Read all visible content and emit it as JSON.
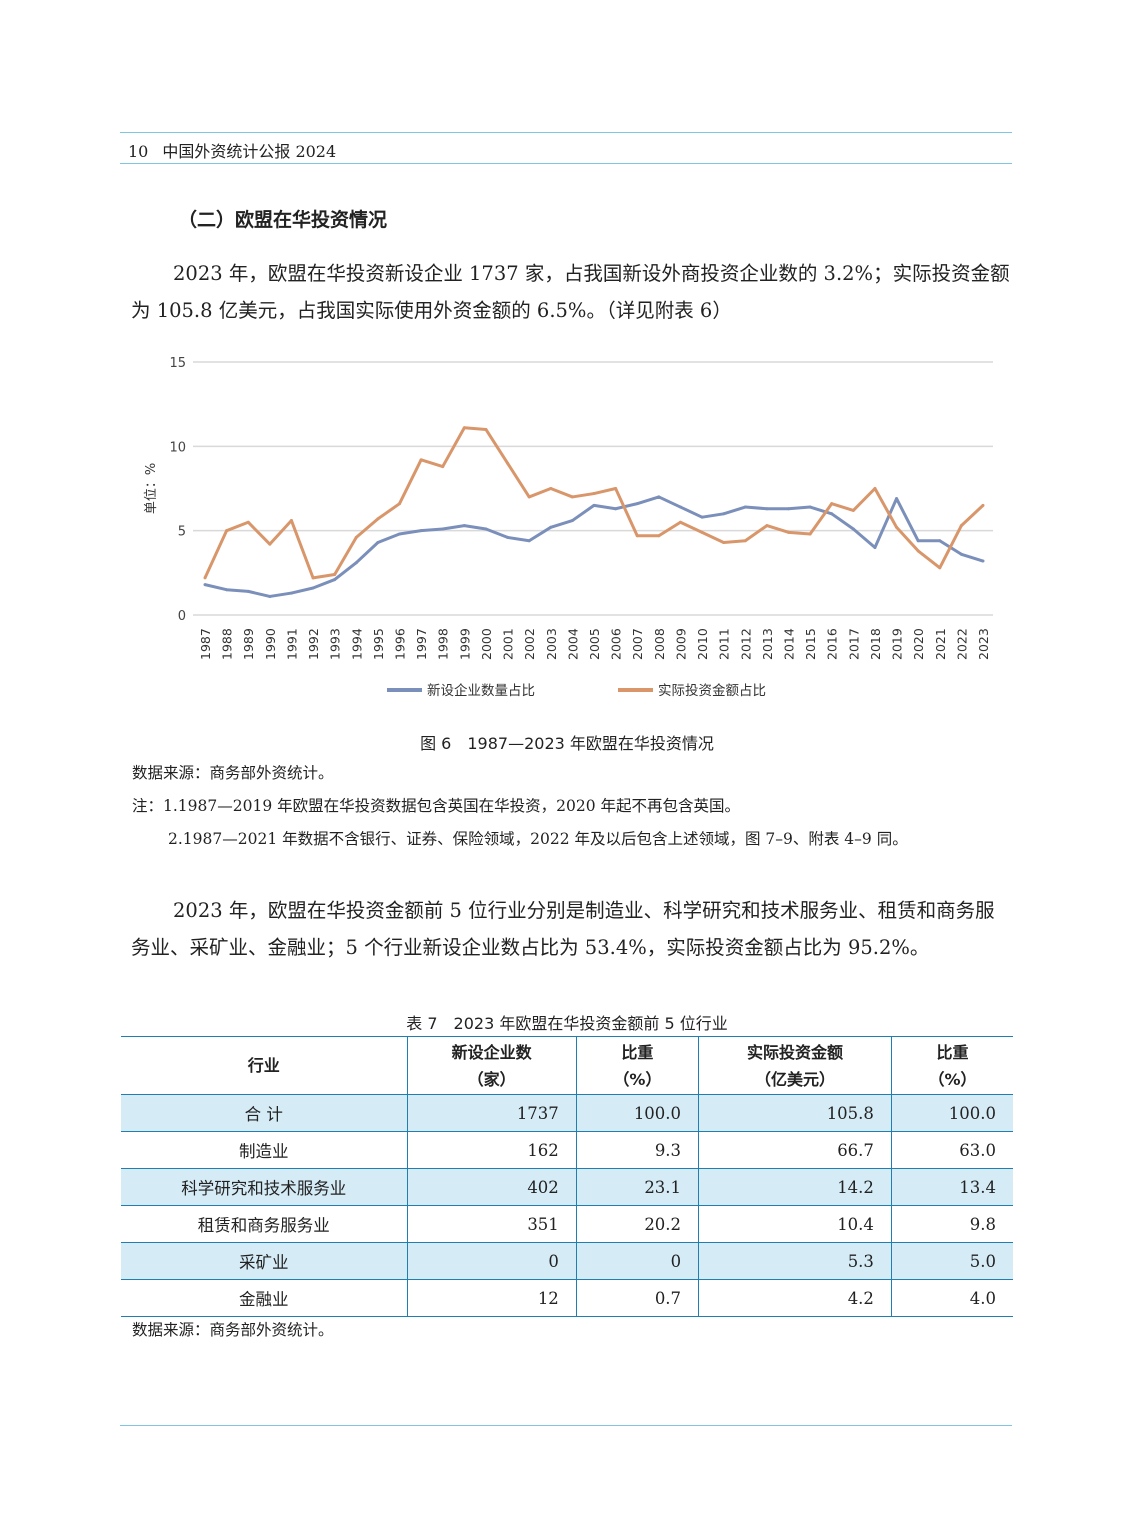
{
  "header": {
    "page_number": "10",
    "title": "中国外资统计公报 2024"
  },
  "section_title": "（二）欧盟在华投资情况",
  "paragraph1": "2023 年，欧盟在华投资新设企业 1737 家，占我国新设外商投资企业数的 3.2%；实际投资金额为 105.8 亿美元，占我国实际使用外资金额的 6.5%。（详见附表 6）",
  "chart_data": {
    "type": "line",
    "title": "",
    "ylabel": "单位：%",
    "ylim": [
      0,
      15
    ],
    "yticks": [
      0,
      5,
      10,
      15
    ],
    "grid": true,
    "legend_position": "bottom",
    "x": [
      "1987",
      "1988",
      "1989",
      "1990",
      "1991",
      "1992",
      "1993",
      "1994",
      "1995",
      "1996",
      "1997",
      "1998",
      "1999",
      "2000",
      "2001",
      "2002",
      "2003",
      "2004",
      "2005",
      "2006",
      "2007",
      "2008",
      "2009",
      "2010",
      "2011",
      "2012",
      "2013",
      "2014",
      "2015",
      "2016",
      "2017",
      "2018",
      "2019",
      "2020",
      "2021",
      "2022",
      "2023"
    ],
    "series": [
      {
        "name": "新设企业数量占比",
        "color": "#7b8fbb",
        "values": [
          1.8,
          1.5,
          1.4,
          1.1,
          1.3,
          1.6,
          2.1,
          3.1,
          4.3,
          4.8,
          5.0,
          5.1,
          5.3,
          5.1,
          4.6,
          4.4,
          5.2,
          5.6,
          6.5,
          6.3,
          6.6,
          7.0,
          6.4,
          5.8,
          6.0,
          6.4,
          6.3,
          6.3,
          6.4,
          6.0,
          5.1,
          4.0,
          6.9,
          4.4,
          4.4,
          3.6,
          3.2
        ]
      },
      {
        "name": "实际投资金额占比",
        "color": "#d8966a",
        "values": [
          2.2,
          5.0,
          5.5,
          4.2,
          5.6,
          2.2,
          2.4,
          4.6,
          5.7,
          6.6,
          9.2,
          8.8,
          11.1,
          11.0,
          9.0,
          7.0,
          7.5,
          7.0,
          7.2,
          7.5,
          4.7,
          4.7,
          5.5,
          4.9,
          4.3,
          4.4,
          5.3,
          4.9,
          4.8,
          6.6,
          6.2,
          7.5,
          5.2,
          3.8,
          2.8,
          5.3,
          6.5
        ]
      }
    ]
  },
  "figure_caption": "图 6　1987—2023 年欧盟在华投资情况",
  "source1": "数据来源：商务部外资统计。",
  "note1": "注：1.1987—2019 年欧盟在华投资数据包含英国在华投资，2020 年起不再包含英国。",
  "note2": "2.1987—2021 年数据不含银行、证券、保险领域，2022 年及以后包含上述领域，图 7–9、附表 4–9 同。",
  "paragraph2": "2023 年，欧盟在华投资金额前 5 位行业分别是制造业、科学研究和技术服务业、租赁和商务服务业、采矿业、金融业；5 个行业新设企业数占比为 53.4%，实际投资金额占比为 95.2%。",
  "table": {
    "title": "表 7　2023 年欧盟在华投资金额前 5 位行业",
    "headers": [
      [
        "行业",
        ""
      ],
      [
        "新设企业数",
        "（家）"
      ],
      [
        "比重",
        "（%）"
      ],
      [
        "实际投资金额",
        "（亿美元）"
      ],
      [
        "比重",
        "（%）"
      ]
    ],
    "rows": [
      [
        "合 计",
        "1737",
        "100.0",
        "105.8",
        "100.0"
      ],
      [
        "制造业",
        "162",
        "9.3",
        "66.7",
        "63.0"
      ],
      [
        "科学研究和技术服务业",
        "402",
        "23.1",
        "14.2",
        "13.4"
      ],
      [
        "租赁和商务服务业",
        "351",
        "20.2",
        "10.4",
        "9.8"
      ],
      [
        "采矿业",
        "0",
        "0",
        "5.3",
        "5.0"
      ],
      [
        "金融业",
        "12",
        "0.7",
        "4.2",
        "4.0"
      ]
    ]
  },
  "source2": "数据来源：商务部外资统计。"
}
